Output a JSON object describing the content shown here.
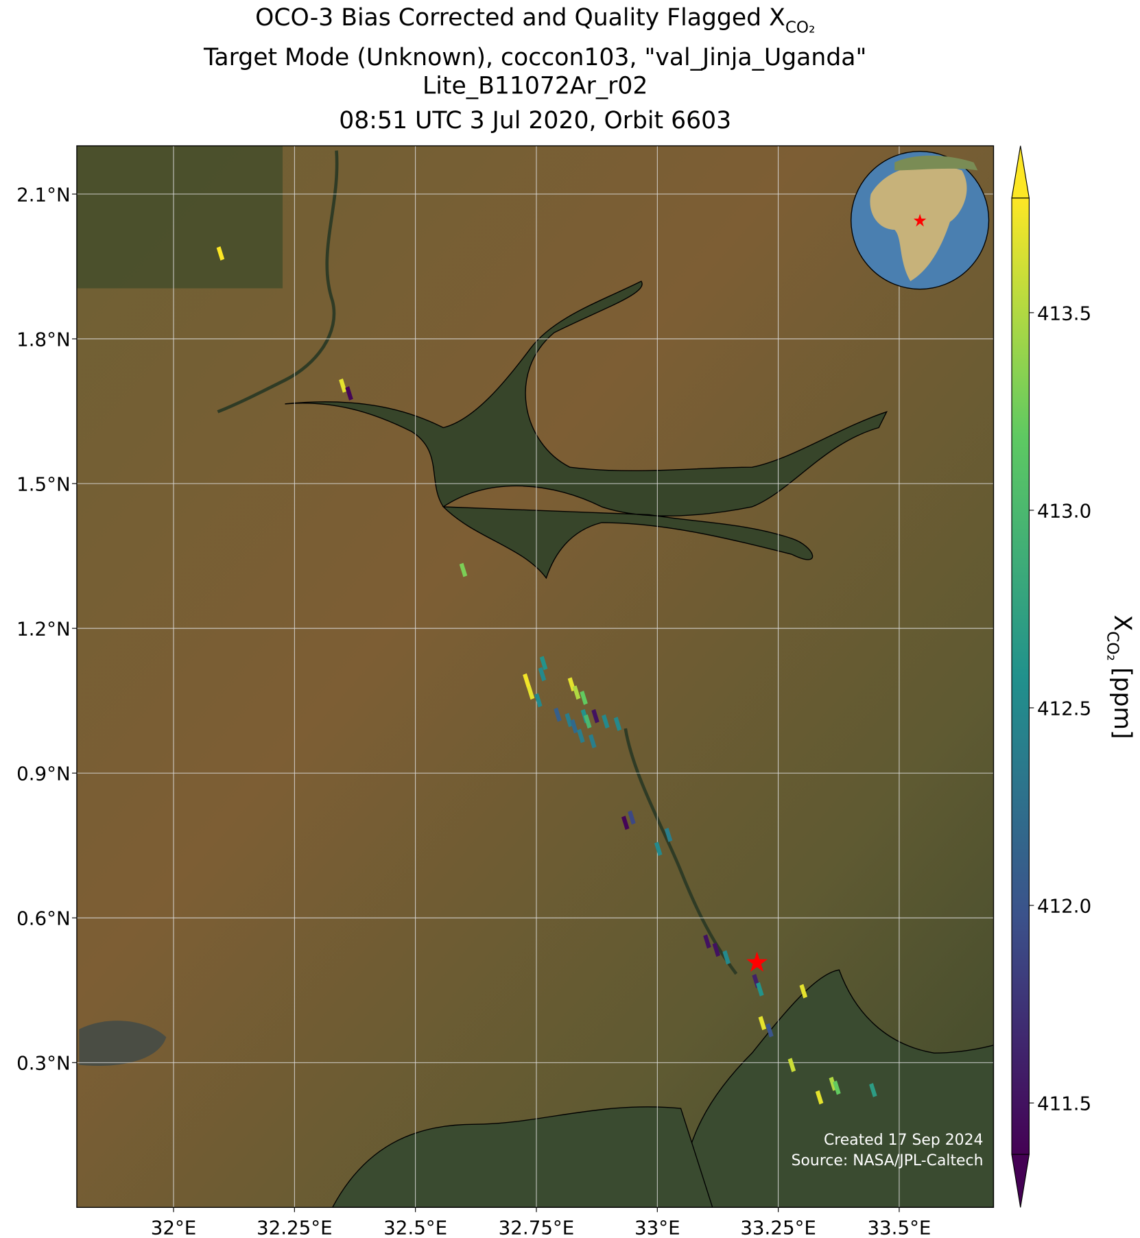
{
  "chart_data": {
    "type": "map-scatter",
    "title": {
      "text": "OCO-3 Bias Corrected and Quality Flagged X",
      "subscript": "CO₂"
    },
    "subtitle_lines": [
      "Target Mode (Unknown), coccon103, \"val_Jinja_Uganda\"",
      "Lite_B11072Ar_r02",
      "08:51 UTC 3 Jul 2020, Orbit 6603"
    ],
    "x": [
      32.097,
      32.35,
      32.363,
      32.599,
      32.73,
      32.738,
      32.765,
      32.762,
      32.754,
      32.823,
      32.833,
      32.848,
      32.794,
      32.817,
      32.828,
      32.85,
      32.856,
      32.872,
      32.842,
      32.866,
      32.893,
      32.918,
      32.934,
      32.947,
      33.002,
      33.023,
      33.103,
      33.122,
      33.143,
      33.204,
      33.212,
      33.302,
      33.217,
      33.232,
      33.278,
      33.335,
      33.363,
      33.371,
      33.446
    ],
    "y": [
      1.977,
      1.703,
      1.687,
      1.321,
      1.092,
      1.067,
      1.128,
      1.105,
      1.051,
      1.084,
      1.067,
      1.056,
      1.021,
      1.01,
      0.997,
      1.018,
      1.007,
      1.018,
      0.977,
      0.966,
      1.007,
      1.002,
      0.797,
      0.808,
      0.743,
      0.772,
      0.551,
      0.534,
      0.518,
      0.469,
      0.452,
      0.448,
      0.382,
      0.367,
      0.295,
      0.228,
      0.256,
      0.248,
      0.243
    ],
    "values": [
      413.8,
      413.7,
      411.4,
      413.3,
      413.75,
      413.7,
      412.6,
      412.5,
      412.5,
      413.7,
      413.5,
      413.2,
      412.1,
      412.4,
      412.2,
      412.6,
      413.0,
      411.5,
      412.4,
      412.4,
      412.5,
      412.5,
      411.4,
      411.9,
      412.5,
      412.4,
      411.5,
      411.5,
      412.5,
      411.6,
      412.6,
      413.7,
      413.7,
      412.0,
      413.6,
      413.7,
      413.5,
      413.2,
      412.7
    ],
    "target": {
      "x": 33.206,
      "y": 0.507
    },
    "xlim": [
      31.8,
      33.695
    ],
    "ylim": [
      0.0,
      2.2
    ],
    "xticks": [
      {
        "value": 32,
        "label": "32°E"
      },
      {
        "value": 32.25,
        "label": "32.25°E"
      },
      {
        "value": 32.5,
        "label": "32.5°E"
      },
      {
        "value": 32.75,
        "label": "32.75°E"
      },
      {
        "value": 33,
        "label": "33°E"
      },
      {
        "value": 33.25,
        "label": "33.25°E"
      },
      {
        "value": 33.5,
        "label": "33.5°E"
      }
    ],
    "yticks": [
      {
        "value": 2.1,
        "label": "2.1°N"
      },
      {
        "value": 1.8,
        "label": "1.8°N"
      },
      {
        "value": 1.5,
        "label": "1.5°N"
      },
      {
        "value": 1.2,
        "label": "1.2°N"
      },
      {
        "value": 0.9,
        "label": "0.9°N"
      },
      {
        "value": 0.6,
        "label": "0.6°N"
      },
      {
        "value": 0.3,
        "label": "0.3°N"
      }
    ],
    "grid": true,
    "colormap": [
      "#440154",
      "#3b528b",
      "#21918c",
      "#5ec962",
      "#fde725"
    ],
    "clim": [
      411.37,
      413.79
    ],
    "cticks": [
      411.5,
      {
        "value": 412,
        "label": "412.0"
      },
      412.5,
      {
        "value": 413,
        "label": "413.0"
      },
      413.5
    ],
    "colorbar_label": {
      "symbol": "X",
      "subscript": "CO₂",
      "unit": "[ppm]"
    },
    "footer": [
      "Created 17 Sep 2024",
      "Source: NASA/JPL-Caltech"
    ]
  }
}
